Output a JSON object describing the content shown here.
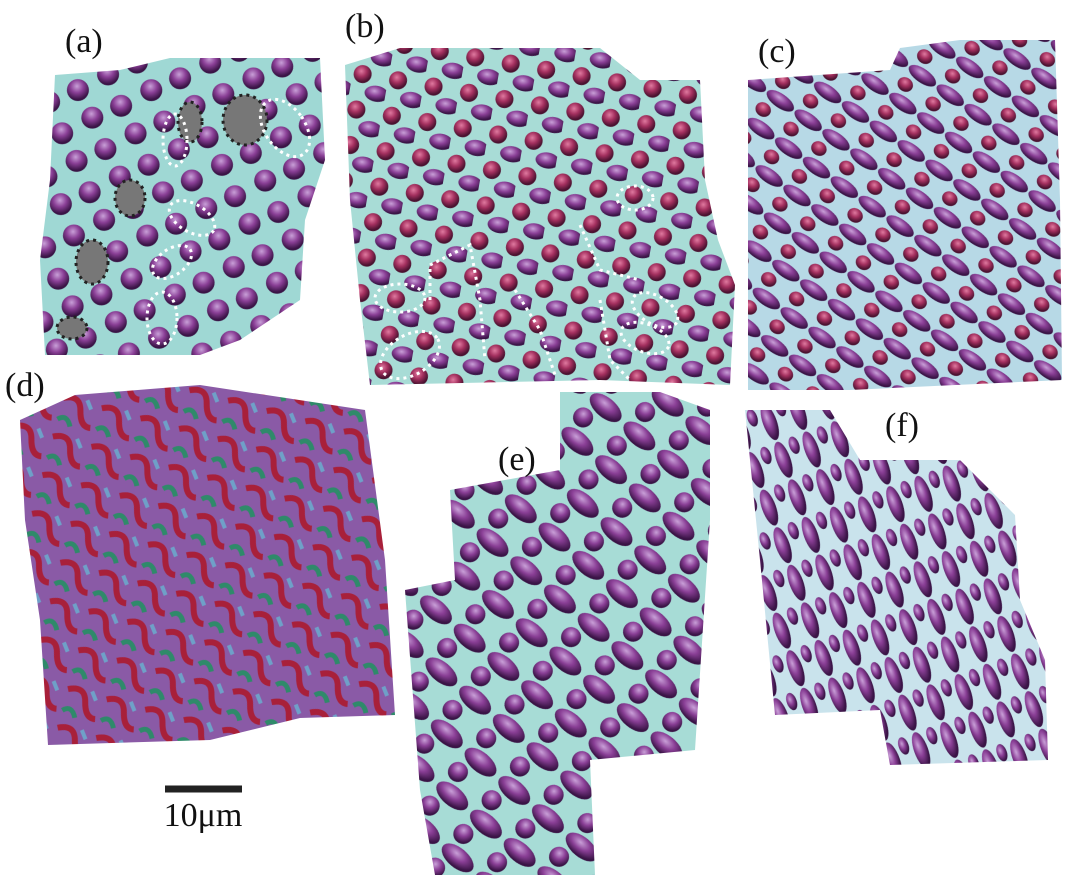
{
  "panels": [
    {
      "label": "(a)"
    },
    {
      "label": "(b)"
    },
    {
      "label": "(c)"
    },
    {
      "label": "(d)"
    },
    {
      "label": "(e)"
    },
    {
      "label": "(f)"
    }
  ],
  "scale_bar": {
    "label": "10μm"
  }
}
